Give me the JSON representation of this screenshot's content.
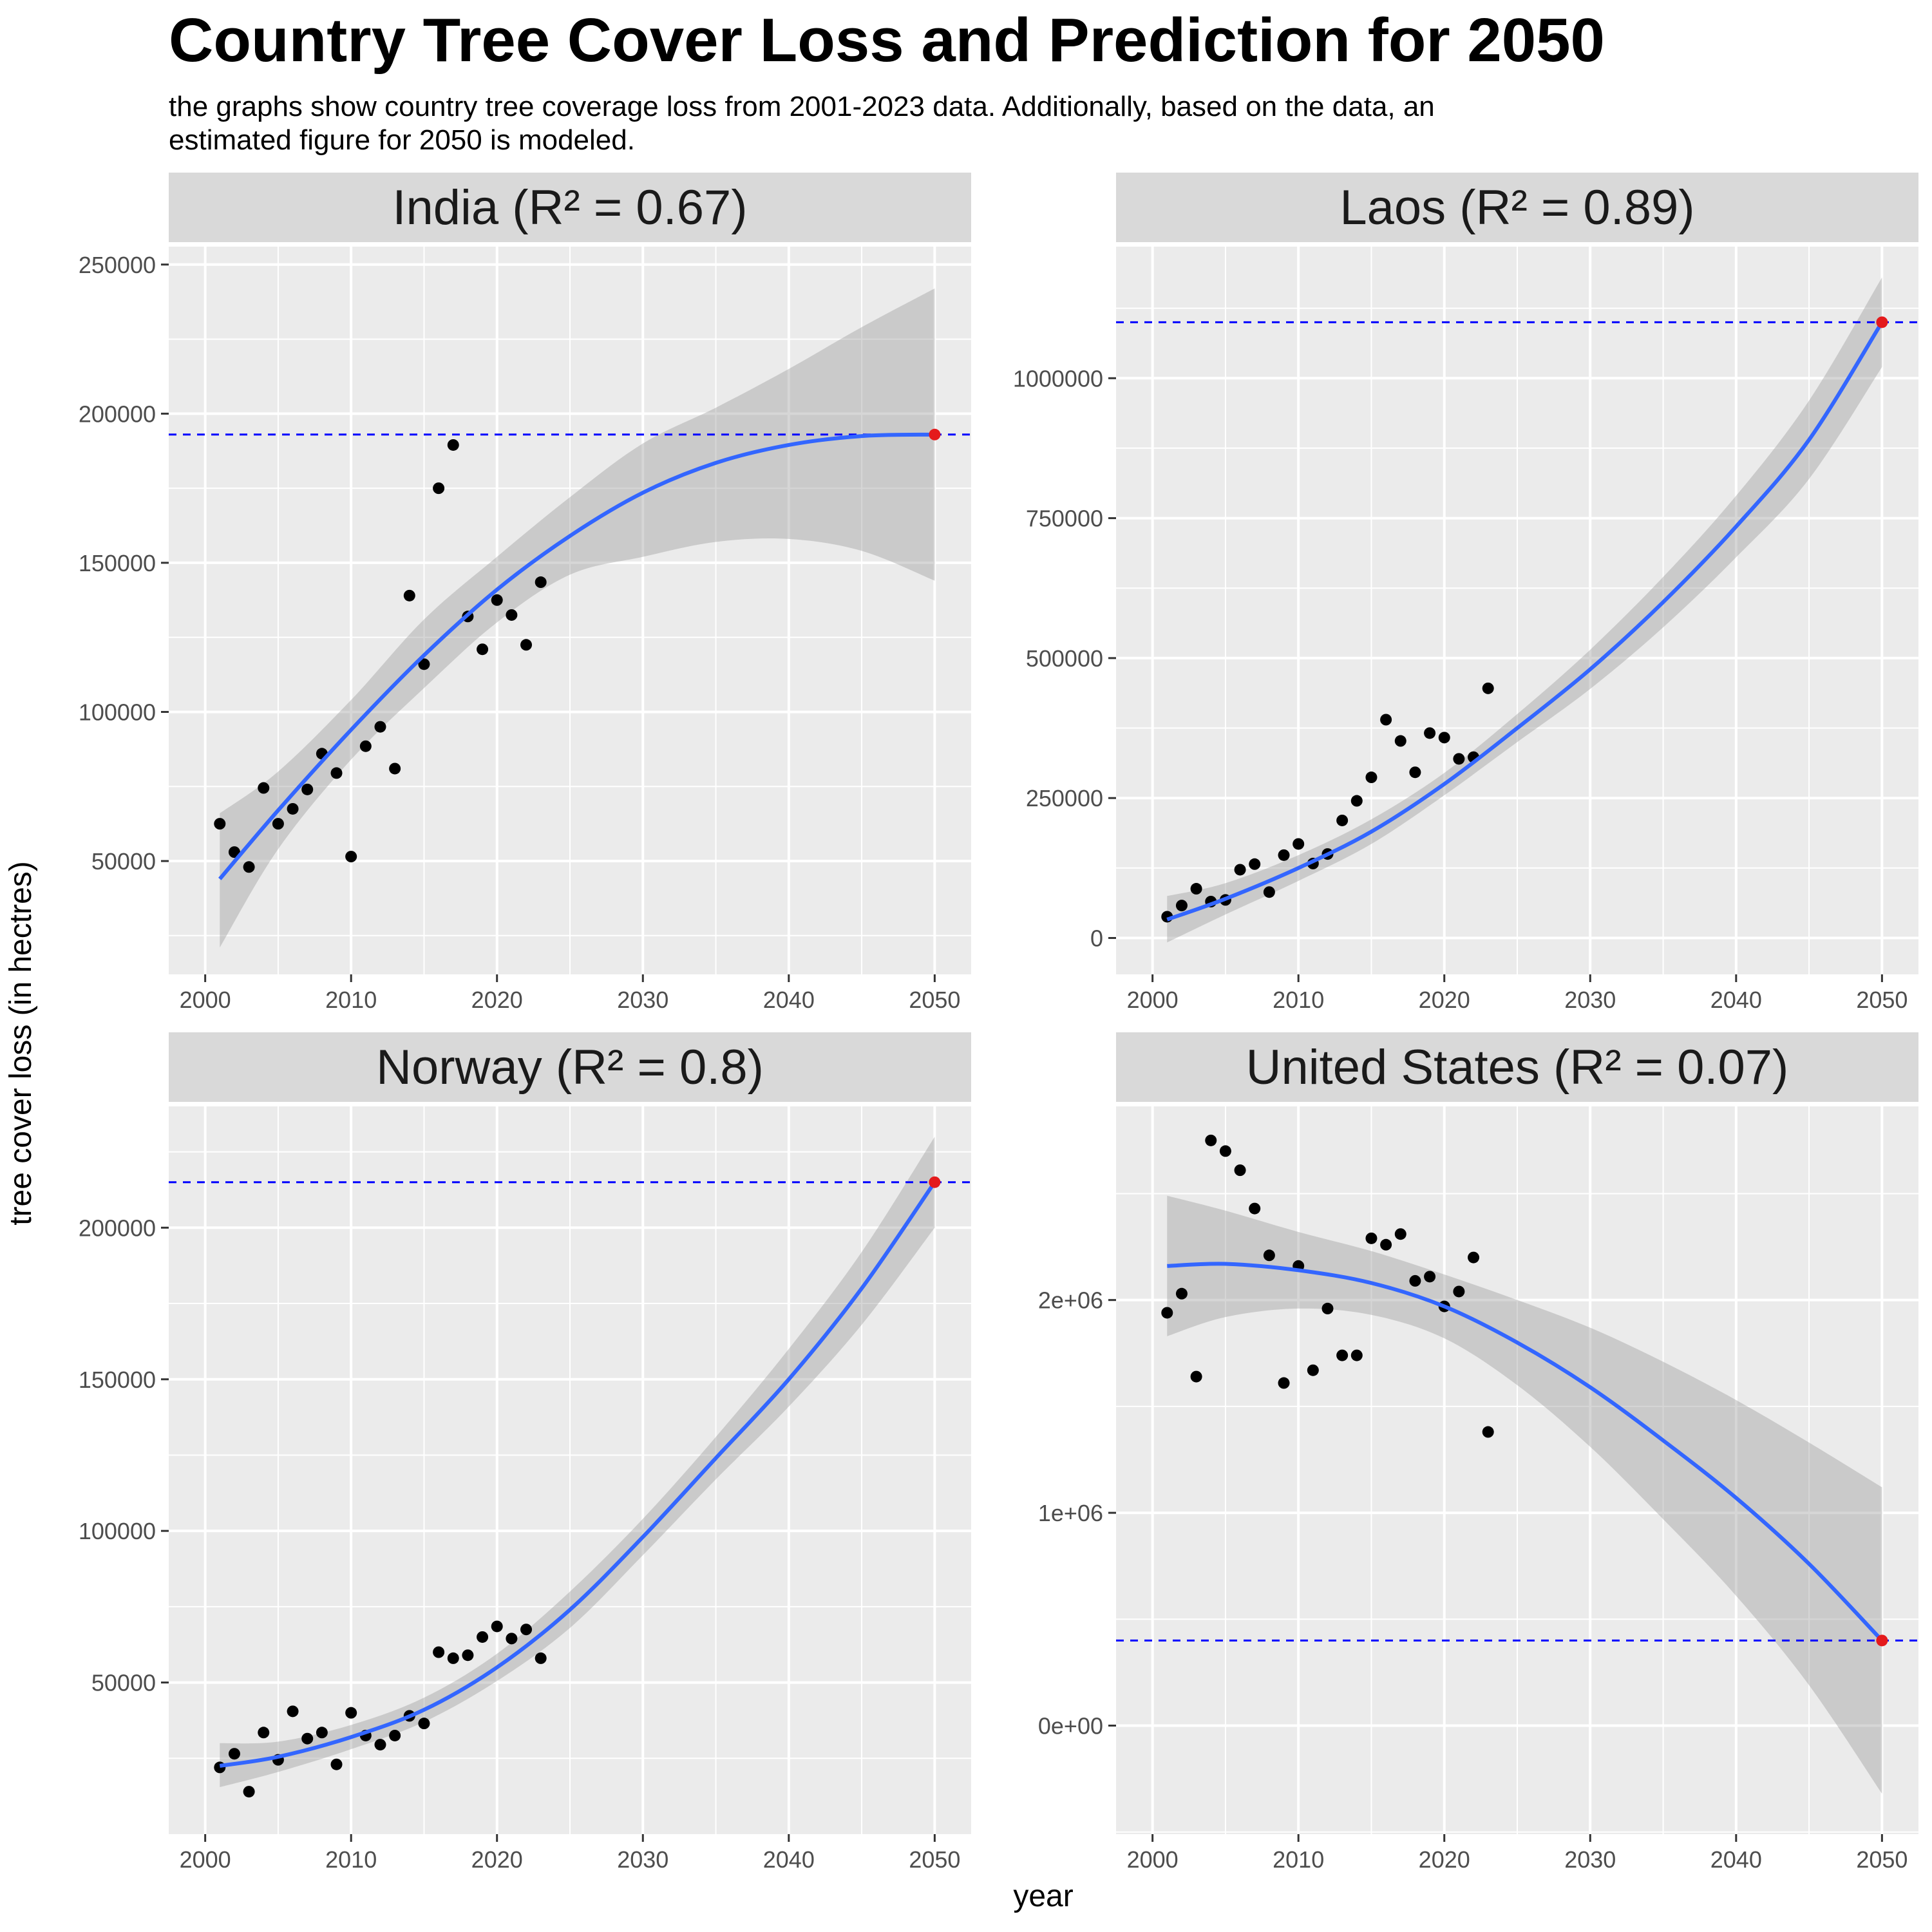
{
  "title": "Country Tree Cover Loss and Prediction for 2050",
  "subtitle_lines": [
    "the graphs show country tree coverage loss from 2001-2023 data. Additionally, based on the data, an",
    "estimated figure for 2050 is modeled."
  ],
  "xlabel": "year",
  "ylabel": "tree cover loss (in hectres)",
  "colors": {
    "panel_bg": "#EBEBEB",
    "strip_bg": "#D9D9D9",
    "grid": "#FFFFFF",
    "fit_line": "#3366FF",
    "ribbon": "#999999",
    "points": "#000000",
    "prediction_point": "#E41A1C",
    "prediction_line": "#0000FF"
  },
  "chart_data": [
    {
      "type": "scatter",
      "panel": "India",
      "strip_label": "India (R² = 0.67)",
      "xlim": [
        1997.5,
        2052.5
      ],
      "ylim": [
        12000,
        256000
      ],
      "x_ticks": [
        2000,
        2010,
        2020,
        2030,
        2040,
        2050
      ],
      "x_tick_labels": [
        "2000",
        "2010",
        "2020",
        "2030",
        "2040",
        "2050"
      ],
      "y_ticks": [
        50000,
        100000,
        150000,
        200000,
        250000
      ],
      "y_tick_labels": [
        "50000",
        "100000",
        "150000",
        "200000",
        "250000"
      ],
      "points": [
        [
          2001,
          62500
        ],
        [
          2002,
          53000
        ],
        [
          2003,
          48000
        ],
        [
          2004,
          74500
        ],
        [
          2005,
          62500
        ],
        [
          2006,
          67500
        ],
        [
          2007,
          74000
        ],
        [
          2008,
          86000
        ],
        [
          2009,
          79500
        ],
        [
          2010,
          51500
        ],
        [
          2011,
          88500
        ],
        [
          2012,
          95000
        ],
        [
          2013,
          81000
        ],
        [
          2014,
          139000
        ],
        [
          2015,
          116000
        ],
        [
          2016,
          175000
        ],
        [
          2017,
          189500
        ],
        [
          2018,
          132000
        ],
        [
          2019,
          121000
        ],
        [
          2020,
          137500
        ],
        [
          2021,
          132500
        ],
        [
          2022,
          122500
        ],
        [
          2023,
          143500
        ]
      ],
      "fit": [
        [
          2001,
          44000
        ],
        [
          2005,
          67000
        ],
        [
          2010,
          94000
        ],
        [
          2015,
          119000
        ],
        [
          2020,
          141000
        ],
        [
          2025,
          159000
        ],
        [
          2030,
          173500
        ],
        [
          2035,
          183500
        ],
        [
          2040,
          189500
        ],
        [
          2045,
          192500
        ],
        [
          2050,
          193000
        ]
      ],
      "ribbon_upper": [
        [
          2001,
          66000
        ],
        [
          2005,
          80000
        ],
        [
          2010,
          104000
        ],
        [
          2015,
          131000
        ],
        [
          2020,
          152000
        ],
        [
          2025,
          172000
        ],
        [
          2030,
          190000
        ],
        [
          2035,
          202000
        ],
        [
          2040,
          215000
        ],
        [
          2045,
          229000
        ],
        [
          2050,
          242000
        ]
      ],
      "ribbon_lower": [
        [
          2001,
          21000
        ],
        [
          2005,
          54000
        ],
        [
          2010,
          84000
        ],
        [
          2015,
          108000
        ],
        [
          2020,
          130000
        ],
        [
          2025,
          146000
        ],
        [
          2030,
          152000
        ],
        [
          2035,
          157000
        ],
        [
          2040,
          158000
        ],
        [
          2045,
          154000
        ],
        [
          2050,
          144000
        ]
      ],
      "prediction": [
        2050,
        193000
      ]
    },
    {
      "type": "scatter",
      "panel": "Laos",
      "strip_label": "Laos (R² = 0.89)",
      "xlim": [
        1997.5,
        2052.5
      ],
      "ylim": [
        -65000,
        1235000
      ],
      "x_ticks": [
        2000,
        2010,
        2020,
        2030,
        2040,
        2050
      ],
      "x_tick_labels": [
        "2000",
        "2010",
        "2020",
        "2030",
        "2040",
        "2050"
      ],
      "y_ticks": [
        0,
        250000,
        500000,
        750000,
        1000000
      ],
      "y_tick_labels": [
        "0",
        "250000",
        "500000",
        "750000",
        "1000000"
      ],
      "points": [
        [
          2001,
          38000
        ],
        [
          2002,
          58000
        ],
        [
          2003,
          88000
        ],
        [
          2004,
          65000
        ],
        [
          2005,
          68000
        ],
        [
          2006,
          122000
        ],
        [
          2007,
          132000
        ],
        [
          2008,
          82000
        ],
        [
          2009,
          148000
        ],
        [
          2010,
          168000
        ],
        [
          2011,
          133000
        ],
        [
          2012,
          150000
        ],
        [
          2013,
          210000
        ],
        [
          2014,
          245000
        ],
        [
          2015,
          287000
        ],
        [
          2016,
          390000
        ],
        [
          2017,
          352000
        ],
        [
          2018,
          296000
        ],
        [
          2019,
          366000
        ],
        [
          2020,
          358000
        ],
        [
          2021,
          320000
        ],
        [
          2022,
          323000
        ],
        [
          2023,
          446000
        ]
      ],
      "fit": [
        [
          2001,
          33000
        ],
        [
          2005,
          70000
        ],
        [
          2010,
          125000
        ],
        [
          2015,
          190000
        ],
        [
          2020,
          275000
        ],
        [
          2025,
          375000
        ],
        [
          2030,
          480000
        ],
        [
          2035,
          600000
        ],
        [
          2040,
          735000
        ],
        [
          2045,
          890000
        ],
        [
          2050,
          1100000
        ]
      ],
      "ribbon_upper": [
        [
          2001,
          75000
        ],
        [
          2005,
          98000
        ],
        [
          2010,
          148000
        ],
        [
          2015,
          212000
        ],
        [
          2020,
          295000
        ],
        [
          2025,
          400000
        ],
        [
          2030,
          515000
        ],
        [
          2035,
          645000
        ],
        [
          2040,
          790000
        ],
        [
          2045,
          960000
        ],
        [
          2050,
          1180000
        ]
      ],
      "ribbon_lower": [
        [
          2001,
          -8000
        ],
        [
          2005,
          42000
        ],
        [
          2010,
          102000
        ],
        [
          2015,
          168000
        ],
        [
          2020,
          255000
        ],
        [
          2025,
          350000
        ],
        [
          2030,
          445000
        ],
        [
          2035,
          555000
        ],
        [
          2040,
          680000
        ],
        [
          2045,
          820000
        ],
        [
          2050,
          1020000
        ]
      ],
      "prediction": [
        2050,
        1100000
      ]
    },
    {
      "type": "scatter",
      "panel": "Norway",
      "strip_label": "Norway (R² = 0.8)",
      "xlim": [
        1997.5,
        2052.5
      ],
      "ylim": [
        0,
        240000
      ],
      "x_ticks": [
        2000,
        2010,
        2020,
        2030,
        2040,
        2050
      ],
      "x_tick_labels": [
        "2000",
        "2010",
        "2020",
        "2030",
        "2040",
        "2050"
      ],
      "y_ticks": [
        50000,
        100000,
        150000,
        200000
      ],
      "y_tick_labels": [
        "50000",
        "100000",
        "150000",
        "200000"
      ],
      "points": [
        [
          2001,
          22000
        ],
        [
          2002,
          26500
        ],
        [
          2003,
          14000
        ],
        [
          2004,
          33500
        ],
        [
          2005,
          24500
        ],
        [
          2006,
          40500
        ],
        [
          2007,
          31500
        ],
        [
          2008,
          33500
        ],
        [
          2009,
          23000
        ],
        [
          2010,
          40000
        ],
        [
          2011,
          32500
        ],
        [
          2012,
          29500
        ],
        [
          2013,
          32500
        ],
        [
          2014,
          39000
        ],
        [
          2015,
          36500
        ],
        [
          2016,
          60000
        ],
        [
          2017,
          58000
        ],
        [
          2018,
          59000
        ],
        [
          2019,
          65000
        ],
        [
          2020,
          68500
        ],
        [
          2021,
          64500
        ],
        [
          2022,
          67500
        ],
        [
          2023,
          58000
        ]
      ],
      "fit": [
        [
          2001,
          22500
        ],
        [
          2005,
          25500
        ],
        [
          2010,
          32000
        ],
        [
          2015,
          41000
        ],
        [
          2020,
          55000
        ],
        [
          2025,
          74000
        ],
        [
          2030,
          98000
        ],
        [
          2035,
          124000
        ],
        [
          2040,
          150000
        ],
        [
          2045,
          180000
        ],
        [
          2050,
          215000
        ]
      ],
      "ribbon_upper": [
        [
          2001,
          30000
        ],
        [
          2005,
          30500
        ],
        [
          2010,
          36000
        ],
        [
          2015,
          45000
        ],
        [
          2020,
          59500
        ],
        [
          2025,
          80000
        ],
        [
          2030,
          104000
        ],
        [
          2035,
          131000
        ],
        [
          2040,
          160000
        ],
        [
          2045,
          192000
        ],
        [
          2050,
          230000
        ]
      ],
      "ribbon_lower": [
        [
          2001,
          15500
        ],
        [
          2005,
          20500
        ],
        [
          2010,
          28000
        ],
        [
          2015,
          37000
        ],
        [
          2020,
          50500
        ],
        [
          2025,
          68000
        ],
        [
          2030,
          92000
        ],
        [
          2035,
          117000
        ],
        [
          2040,
          141000
        ],
        [
          2045,
          168000
        ],
        [
          2050,
          200000
        ]
      ],
      "prediction": [
        2050,
        215000
      ]
    },
    {
      "type": "scatter",
      "panel": "United States",
      "strip_label": "United States (R² = 0.07)",
      "xlim": [
        1997.5,
        2052.5
      ],
      "ylim": [
        -510000,
        2910000
      ],
      "x_ticks": [
        2000,
        2010,
        2020,
        2030,
        2040,
        2050
      ],
      "x_tick_labels": [
        "2000",
        "2010",
        "2020",
        "2030",
        "2040",
        "2050"
      ],
      "y_ticks": [
        0,
        1000000,
        2000000
      ],
      "y_tick_labels": [
        "0e+00",
        "1e+06",
        "2e+06"
      ],
      "points": [
        [
          2001,
          1940000
        ],
        [
          2002,
          2030000
        ],
        [
          2003,
          1640000
        ],
        [
          2004,
          2750000
        ],
        [
          2005,
          2700000
        ],
        [
          2006,
          2610000
        ],
        [
          2007,
          2430000
        ],
        [
          2008,
          2210000
        ],
        [
          2009,
          1610000
        ],
        [
          2010,
          2160000
        ],
        [
          2011,
          1670000
        ],
        [
          2012,
          1960000
        ],
        [
          2013,
          1740000
        ],
        [
          2014,
          1740000
        ],
        [
          2015,
          2290000
        ],
        [
          2016,
          2260000
        ],
        [
          2017,
          2310000
        ],
        [
          2018,
          2090000
        ],
        [
          2019,
          2110000
        ],
        [
          2020,
          1970000
        ],
        [
          2021,
          2040000
        ],
        [
          2022,
          2200000
        ],
        [
          2023,
          1380000
        ]
      ],
      "fit": [
        [
          2001,
          2160000
        ],
        [
          2005,
          2170000
        ],
        [
          2010,
          2140000
        ],
        [
          2015,
          2080000
        ],
        [
          2020,
          1970000
        ],
        [
          2025,
          1800000
        ],
        [
          2030,
          1590000
        ],
        [
          2035,
          1340000
        ],
        [
          2040,
          1070000
        ],
        [
          2045,
          760000
        ],
        [
          2050,
          400000
        ]
      ],
      "ribbon_upper": [
        [
          2001,
          2490000
        ],
        [
          2005,
          2420000
        ],
        [
          2010,
          2320000
        ],
        [
          2015,
          2230000
        ],
        [
          2020,
          2120000
        ],
        [
          2025,
          2000000
        ],
        [
          2030,
          1870000
        ],
        [
          2035,
          1710000
        ],
        [
          2040,
          1530000
        ],
        [
          2045,
          1330000
        ],
        [
          2050,
          1120000
        ]
      ],
      "ribbon_lower": [
        [
          2001,
          1830000
        ],
        [
          2005,
          1920000
        ],
        [
          2010,
          1960000
        ],
        [
          2015,
          1930000
        ],
        [
          2020,
          1820000
        ],
        [
          2025,
          1600000
        ],
        [
          2030,
          1310000
        ],
        [
          2035,
          970000
        ],
        [
          2040,
          610000
        ],
        [
          2045,
          190000
        ],
        [
          2050,
          -320000
        ]
      ],
      "prediction": [
        2050,
        400000
      ]
    }
  ]
}
